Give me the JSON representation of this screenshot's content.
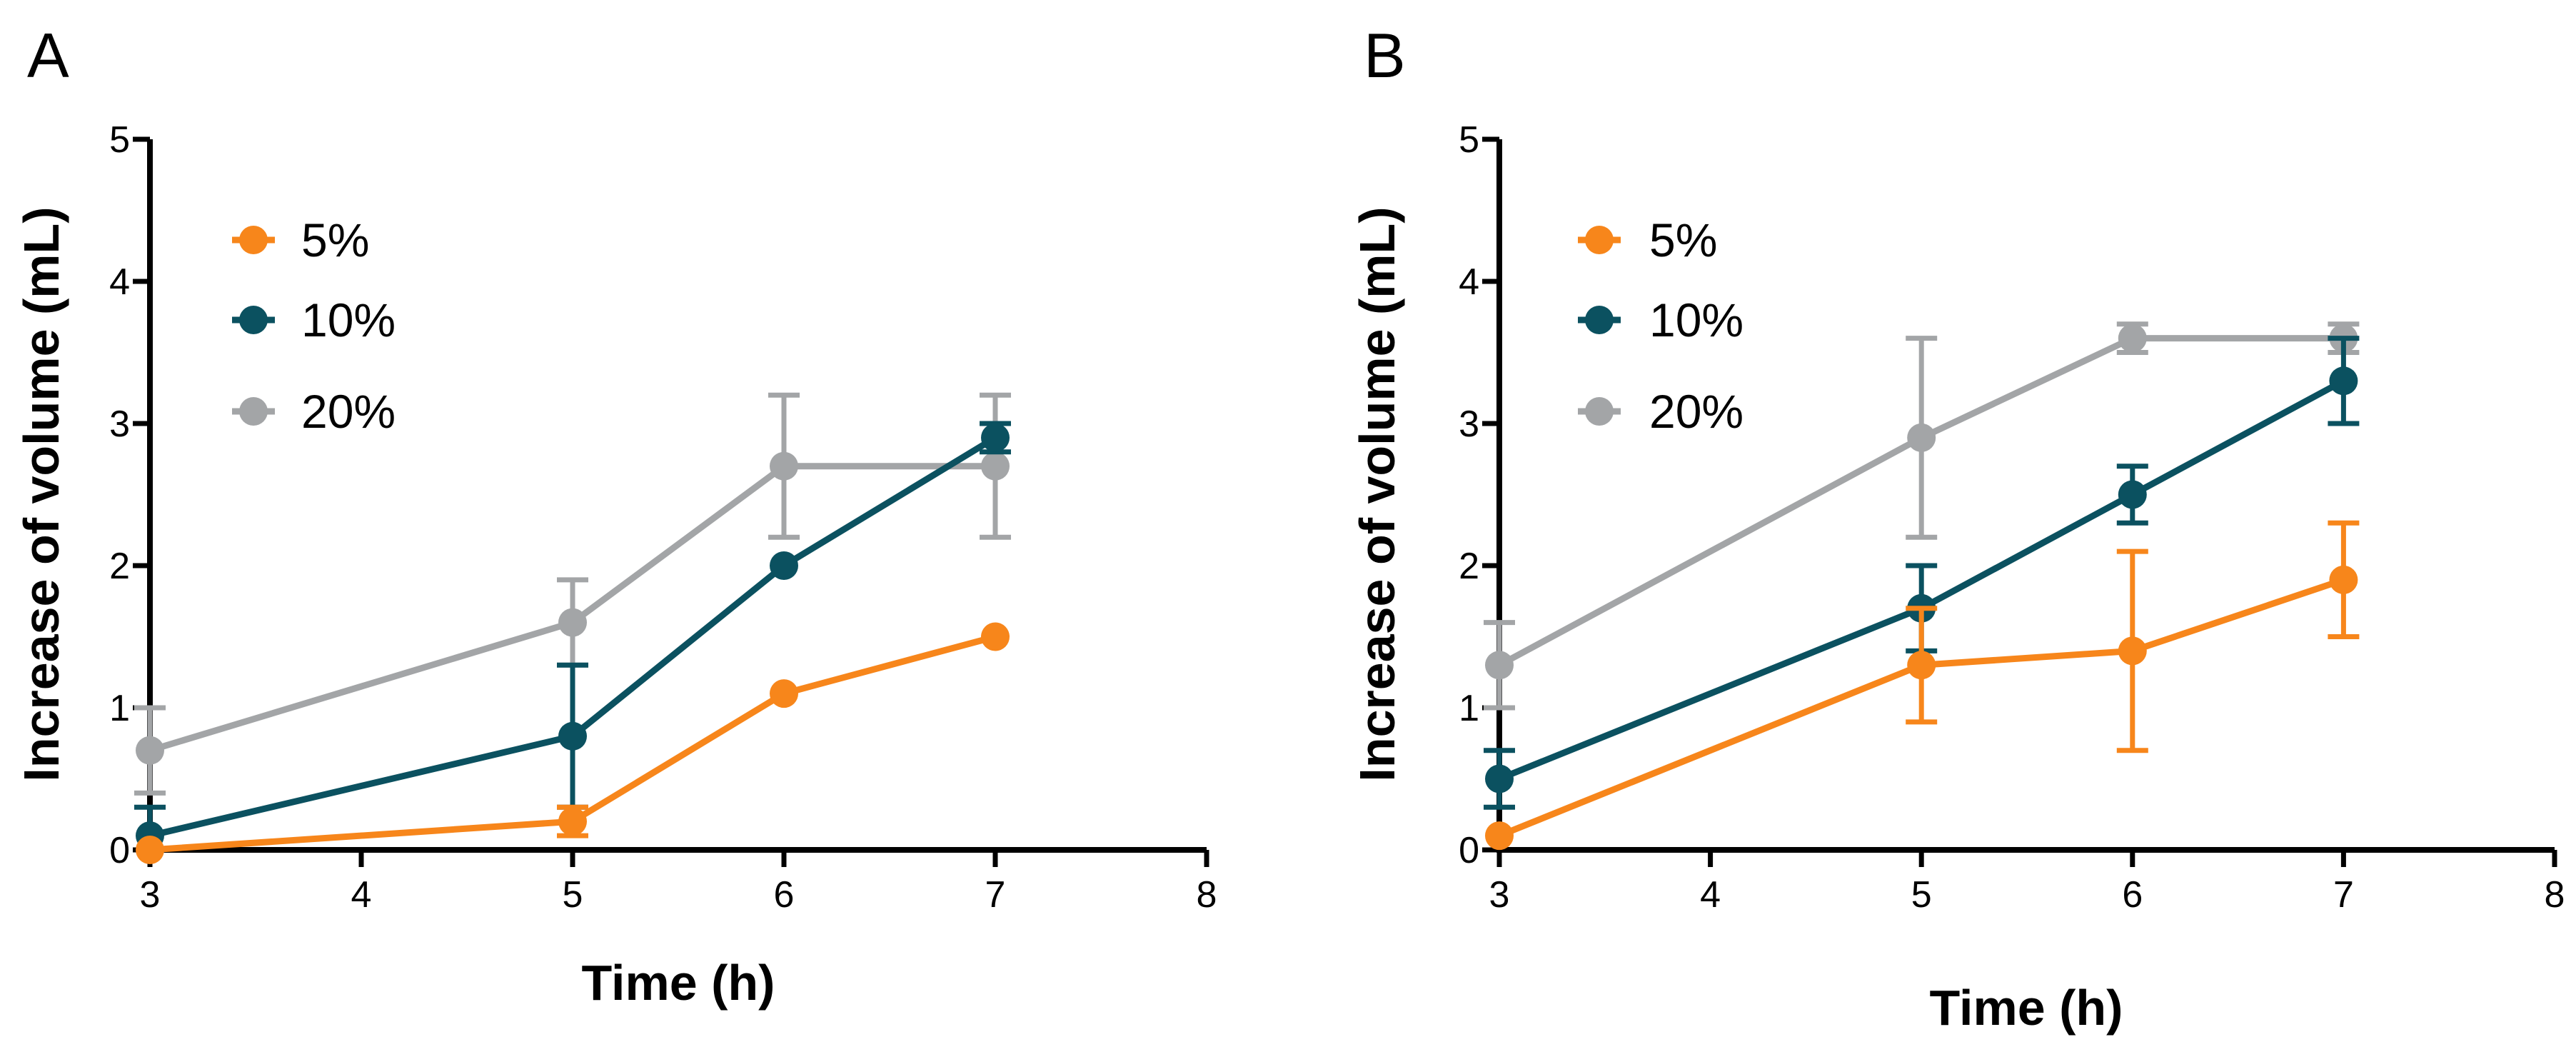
{
  "chart_data": [
    {
      "type": "line",
      "panel_label": "A",
      "xlabel": "Time (h)",
      "ylabel": "Increase of volume (mL)",
      "xlim": [
        3,
        8
      ],
      "ylim": [
        0,
        5
      ],
      "x_ticks": [
        3,
        4,
        5,
        6,
        7,
        8
      ],
      "y_ticks": [
        0,
        1,
        2,
        3,
        4,
        5
      ],
      "legend_position": "top-left",
      "series": [
        {
          "name": "5%",
          "color": "#F7861B",
          "x": [
            3,
            5,
            6,
            7
          ],
          "values": [
            0.0,
            0.2,
            1.1,
            1.5
          ],
          "error": [
            0.0,
            0.1,
            0.0,
            0.0
          ]
        },
        {
          "name": "10%",
          "color": "#0B5160",
          "x": [
            3,
            5,
            6,
            7
          ],
          "values": [
            0.1,
            0.8,
            2.0,
            2.9
          ],
          "error": [
            0.2,
            0.5,
            0.0,
            0.1
          ]
        },
        {
          "name": "20%",
          "color": "#A3A5A7",
          "x": [
            3,
            5,
            6,
            7
          ],
          "values": [
            0.7,
            1.6,
            2.7,
            2.7
          ],
          "error": [
            0.3,
            0.3,
            0.5,
            0.5
          ]
        }
      ]
    },
    {
      "type": "line",
      "panel_label": "B",
      "xlabel": "Time (h)",
      "ylabel": "Increase of volume (mL)",
      "xlim": [
        3,
        8
      ],
      "ylim": [
        0,
        5
      ],
      "x_ticks": [
        3,
        4,
        5,
        6,
        7,
        8
      ],
      "y_ticks": [
        0,
        1,
        2,
        3,
        4,
        5
      ],
      "legend_position": "top-left",
      "series": [
        {
          "name": "5%",
          "color": "#F7861B",
          "x": [
            3,
            5,
            6,
            7
          ],
          "values": [
            0.1,
            1.3,
            1.4,
            1.9
          ],
          "error": [
            0.0,
            0.4,
            0.7,
            0.4
          ]
        },
        {
          "name": "10%",
          "color": "#0B5160",
          "x": [
            3,
            5,
            6,
            7
          ],
          "values": [
            0.5,
            1.7,
            2.5,
            3.3
          ],
          "error": [
            0.2,
            0.3,
            0.2,
            0.3
          ]
        },
        {
          "name": "20%",
          "color": "#A3A5A7",
          "x": [
            3,
            5,
            6,
            7
          ],
          "values": [
            1.3,
            2.9,
            3.6,
            3.6
          ],
          "error": [
            0.3,
            0.7,
            0.1,
            0.1
          ]
        }
      ]
    }
  ]
}
